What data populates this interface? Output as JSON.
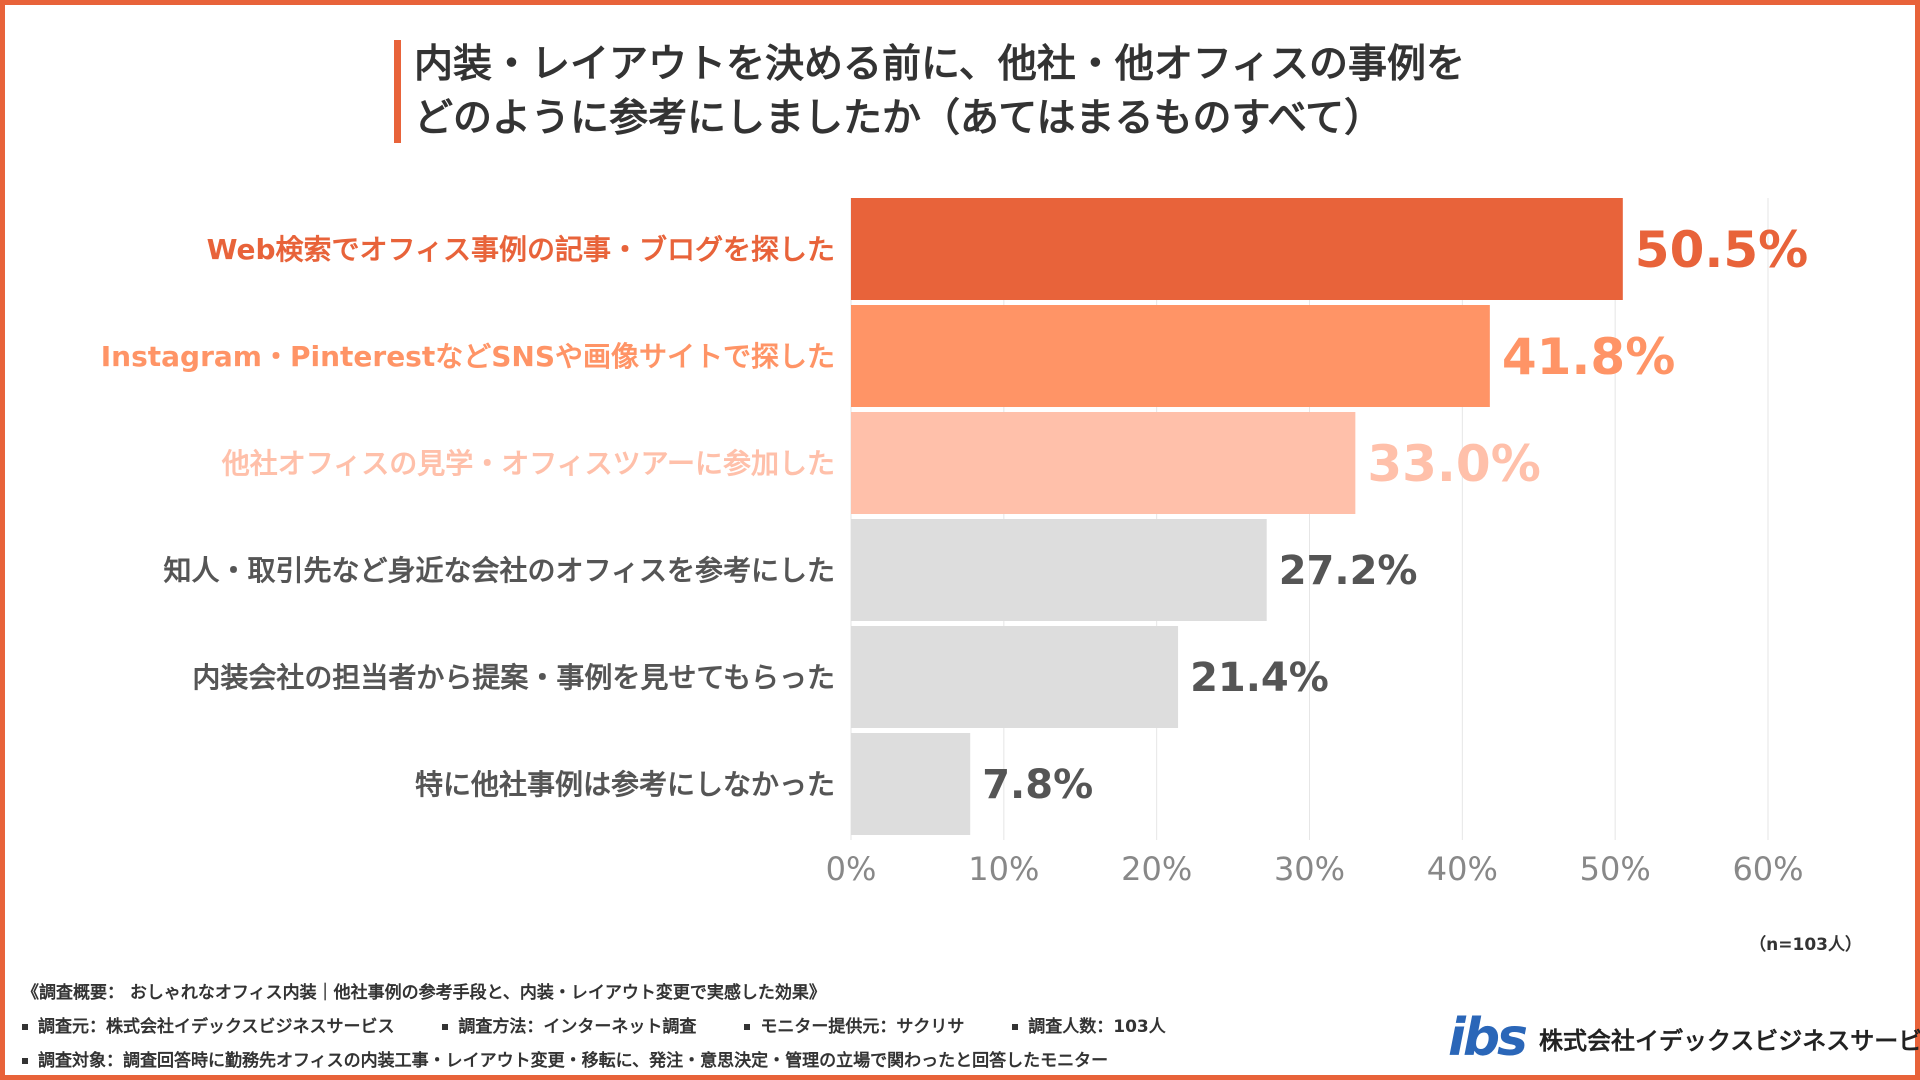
{
  "title": {
    "line1": "内装・レイアウトを決める前に、他社・他オフィスの事例を",
    "line2": "どのように参考にしましたか（あてはまるものすべて）"
  },
  "chart_data": {
    "type": "bar",
    "orientation": "horizontal",
    "categories": [
      "Web検索でオフィス事例の記事・ブログを探した",
      "Instagram・PinterestなどSNSや画像サイトで探した",
      "他社オフィスの見学・オフィスツアーに参加した",
      "知人・取引先など身近な会社のオフィスを参考にした",
      "内装会社の担当者から提案・事例を見せてもらった",
      "特に他社事例は参考にしなかった"
    ],
    "values": [
      50.5,
      41.8,
      33.0,
      27.2,
      21.4,
      7.8
    ],
    "value_labels": [
      "50.5%",
      "41.8%",
      "33.0%",
      "27.2%",
      "21.4%",
      "7.8%"
    ],
    "xlim": [
      0,
      60
    ],
    "xticks": [
      "0%",
      "10%",
      "20%",
      "30%",
      "40%",
      "50%",
      "60%"
    ],
    "grid": true,
    "colors": {
      "bars": [
        "#e8633a",
        "#ff9466",
        "#ffc0aa",
        "#dddddd",
        "#dddddd",
        "#dddddd"
      ],
      "labels": [
        "#e8633a",
        "#ff9466",
        "#ffc0aa",
        "#555555",
        "#555555",
        "#555555"
      ]
    }
  },
  "sample_size": "（n=103人）",
  "footer": {
    "overview": "《調査概要： おしゃれなオフィス内装｜他社事例の参考手段と、内装・レイアウト変更で実感した効果》",
    "items": [
      "調査元：株式会社イデックスビジネスサービス",
      "調査方法：インターネット調査",
      "モニター提供元：サクリサ",
      "調査人数：103人"
    ],
    "target": "調査対象：調査回答時に勤務先オフィスの内装工事・レイアウト変更・移転に、発注・意思決定・管理の立場で関わったと回答したモニター"
  },
  "logo": {
    "mark": "ibs",
    "company": "株式会社イデックスビジネスサービス",
    "brand_color": "#2a66b8"
  },
  "accent_color": "#e8633a"
}
